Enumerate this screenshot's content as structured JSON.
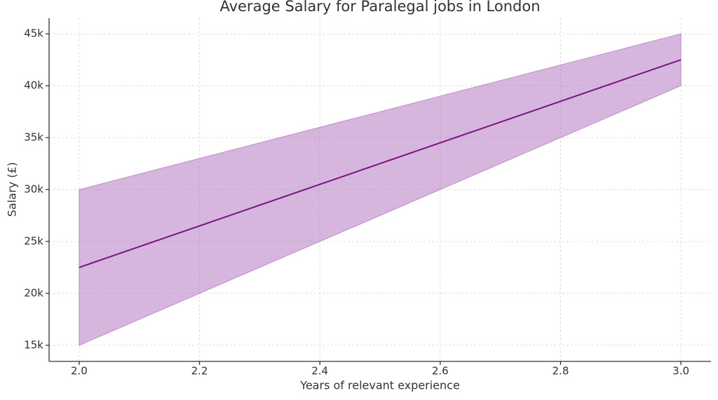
{
  "chart_data": {
    "type": "line",
    "title": "Average Salary for Paralegal jobs in London",
    "x_label": "Years of relevant experience",
    "y_label": "Salary (£)",
    "x": [
      2.0,
      3.0
    ],
    "values": [
      22500,
      42500
    ],
    "lower": [
      15000,
      40000
    ],
    "upper": [
      30000,
      45000
    ],
    "color": "#7b1282",
    "band_color": "#a75eb5",
    "xlim": [
      1.95,
      3.05
    ],
    "ylim": [
      13450,
      46500
    ],
    "xticks": [
      {
        "value": 2.0,
        "label": "2.0"
      },
      2.2,
      2.4,
      2.6,
      2.8,
      {
        "value": 3.0,
        "label": "3.0"
      }
    ],
    "yticks": [
      {
        "value": 15000,
        "label": "15k"
      },
      {
        "value": 20000,
        "label": "20k"
      },
      {
        "value": 25000,
        "label": "25k"
      },
      {
        "value": 30000,
        "label": "30k"
      },
      {
        "value": 35000,
        "label": "35k"
      },
      {
        "value": 40000,
        "label": "40k"
      },
      {
        "value": 45000,
        "label": "45k"
      }
    ],
    "grid": true
  }
}
